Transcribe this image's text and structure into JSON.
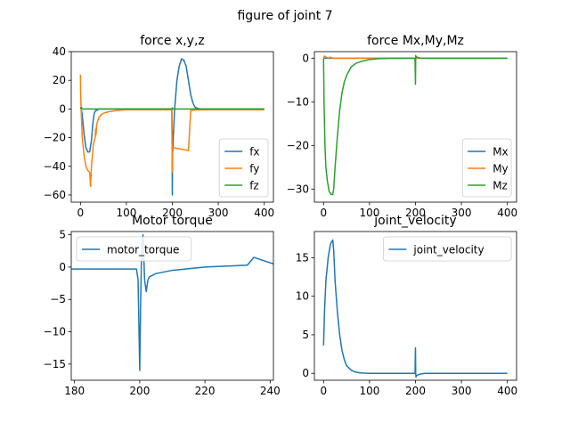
{
  "figure": {
    "suptitle": "figure of joint 7"
  },
  "colors": {
    "blue": "#1f77b4",
    "orange": "#ff7f0e",
    "green": "#2ca02c"
  },
  "chart_data": [
    {
      "type": "line",
      "title": "force x,y,z",
      "xlabel": "",
      "ylabel": "",
      "xlim": [
        -20,
        420
      ],
      "ylim": [
        -65,
        40
      ],
      "xticks": [
        0,
        100,
        200,
        300,
        400
      ],
      "yticks": [
        40,
        20,
        0,
        -20,
        -40,
        -60
      ],
      "grid": false,
      "legend": "lower right",
      "series": [
        {
          "name": "fx",
          "color": "#1f77b4",
          "x": [
            0,
            1,
            3,
            5,
            8,
            12,
            16,
            20,
            24,
            27,
            30,
            33,
            36,
            40,
            50,
            100,
            150,
            199,
            200,
            200.5,
            201,
            202,
            205,
            210,
            215,
            220,
            225,
            230,
            235,
            240,
            245,
            250,
            260,
            280,
            300,
            400
          ],
          "y": [
            0,
            1,
            -2,
            -8,
            -18,
            -27,
            -30,
            -30,
            -22,
            -10,
            -3,
            -1,
            -1,
            0,
            0,
            0,
            0,
            0,
            -60,
            -15,
            -30,
            -20,
            0,
            20,
            30,
            35,
            34,
            30,
            20,
            10,
            4,
            1,
            0,
            0,
            0,
            0
          ]
        },
        {
          "name": "fy",
          "color": "#ff7f0e",
          "x": [
            0,
            0.5,
            2,
            4,
            8,
            12,
            16,
            20,
            22,
            24,
            28,
            32,
            33,
            34,
            35,
            36,
            40,
            45,
            50,
            60,
            70,
            80,
            100,
            150,
            199,
            200,
            200.5,
            201,
            202,
            210,
            220,
            235,
            240,
            260,
            400
          ],
          "y": [
            24,
            10,
            -5,
            -20,
            -33,
            -40,
            -43,
            -44,
            -54,
            -40,
            -25,
            -20,
            -14,
            -18,
            -12,
            -10,
            -6,
            -4,
            -3,
            -2,
            -1.5,
            -1,
            -0.5,
            -0.5,
            -0.5,
            -44,
            -27,
            -27,
            -27,
            -27.5,
            -28,
            -29,
            -1,
            -0.5,
            -0.5
          ]
        },
        {
          "name": "fz",
          "color": "#2ca02c",
          "x": [
            0,
            2,
            5,
            10,
            20,
            50,
            100,
            199,
            200,
            201,
            202,
            300,
            400
          ],
          "y": [
            0,
            1,
            0,
            0,
            0,
            0,
            0,
            0,
            0.8,
            0,
            0,
            0,
            0
          ]
        }
      ]
    },
    {
      "type": "line",
      "title": "force Mx,My,Mz",
      "xlabel": "",
      "ylabel": "",
      "xlim": [
        -20,
        420
      ],
      "ylim": [
        -33,
        1.5
      ],
      "xticks": [
        0,
        100,
        200,
        300,
        400
      ],
      "yticks": [
        0,
        -10,
        -20,
        -30
      ],
      "grid": false,
      "legend": "lower right",
      "series": [
        {
          "name": "Mx",
          "color": "#1f77b4",
          "x": [
            0,
            100,
            200,
            300,
            400
          ],
          "y": [
            0,
            0,
            0,
            0,
            0
          ]
        },
        {
          "name": "My",
          "color": "#ff7f0e",
          "x": [
            0,
            2,
            5,
            10,
            15,
            20,
            30,
            100,
            200,
            300,
            400
          ],
          "y": [
            0,
            0.5,
            0.3,
            0,
            0.2,
            0,
            0,
            0,
            0,
            0,
            0
          ]
        },
        {
          "name": "Mz",
          "color": "#2ca02c",
          "x": [
            0,
            1,
            3,
            5,
            8,
            12,
            16,
            20,
            22,
            25,
            30,
            35,
            40,
            45,
            50,
            60,
            70,
            80,
            100,
            120,
            150,
            199,
            200,
            200.5,
            201,
            202,
            210,
            400
          ],
          "y": [
            0,
            -10,
            -20,
            -25,
            -28,
            -30.5,
            -31.2,
            -31.3,
            -30,
            -25,
            -18,
            -12,
            -8,
            -5.5,
            -4,
            -2,
            -1.2,
            -0.8,
            -0.3,
            -0.1,
            0,
            0,
            -6,
            0.6,
            0.4,
            0.3,
            0,
            0
          ]
        }
      ]
    },
    {
      "type": "line",
      "title": "Motor torque",
      "xlabel": "",
      "ylabel": "",
      "xlim": [
        179,
        241
      ],
      "ylim": [
        -17.5,
        5.5
      ],
      "xticks": [
        180,
        200,
        220,
        240
      ],
      "yticks": [
        5,
        0,
        -5,
        -10,
        -15
      ],
      "grid": false,
      "legend": "upper left",
      "series": [
        {
          "name": "motor_torque",
          "color": "#1f77b4",
          "x": [
            179,
            199,
            199.5,
            200,
            200.3,
            200.6,
            201,
            201.5,
            202,
            202.5,
            203,
            205,
            210,
            220,
            233,
            235,
            238,
            241
          ],
          "y": [
            -0.3,
            -0.3,
            -2,
            -16,
            -5,
            3,
            5,
            -2,
            -3.8,
            -2,
            -1.5,
            -1,
            -0.5,
            0,
            0.3,
            1.5,
            1,
            0.5
          ]
        }
      ]
    },
    {
      "type": "line",
      "title": "joint_velocity",
      "xlabel": "",
      "ylabel": "",
      "xlim": [
        -20,
        420
      ],
      "ylim": [
        -0.9,
        18.4
      ],
      "xticks": [
        0,
        100,
        200,
        300,
        400
      ],
      "yticks": [
        15,
        10,
        5,
        0
      ],
      "grid": false,
      "legend": "upper right",
      "series": [
        {
          "name": "joint_velocity",
          "color": "#1f77b4",
          "x": [
            0,
            2,
            5,
            10,
            15,
            20,
            22,
            25,
            30,
            35,
            40,
            45,
            50,
            60,
            70,
            80,
            100,
            150,
            199,
            200,
            200.5,
            201,
            202,
            210,
            220,
            400
          ],
          "y": [
            3.6,
            8,
            12,
            15,
            16.8,
            17.3,
            16,
            12,
            8,
            5,
            3,
            1.8,
            1,
            0.4,
            0.15,
            0.05,
            0,
            0,
            0,
            3.3,
            0,
            -0.5,
            -0.3,
            -0.1,
            0,
            0
          ]
        }
      ]
    }
  ]
}
